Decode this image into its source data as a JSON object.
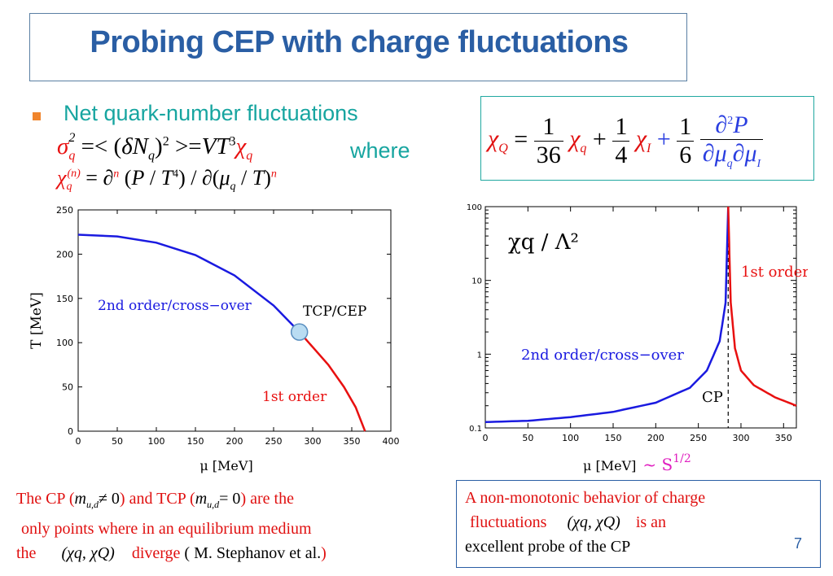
{
  "slide": {
    "title": "Probing CEP with charge fluctuations",
    "bullet": "Net quark-number fluctuations",
    "where": "where",
    "page_number": "7"
  },
  "colors": {
    "title": "#2a5ea4",
    "teal": "#17a5a0",
    "bullet_marker": "#f0852d",
    "red": "#e81010",
    "blue_curve": "#1a1ae0",
    "red_curve": "#e81010",
    "magenta": "#e020c0"
  },
  "formula_box": {
    "lhs": "χQ",
    "eq": "=",
    "c1_num": "1",
    "c1_den": "36",
    "t1": "χq",
    "plus": "+",
    "c2_num": "1",
    "c2_den": "4",
    "t2": "χI",
    "c3_num": "1",
    "c3_den": "6",
    "d_num": "∂²P",
    "d_den": "∂μq∂μI"
  },
  "left_chart": {
    "y_label": "T [MeV]",
    "x_label": "μ  [MeV]",
    "y_ticks": [
      "0",
      "50",
      "100",
      "150",
      "200",
      "250"
    ],
    "x_ticks": [
      "0",
      "50",
      "100",
      "150",
      "200",
      "250",
      "300",
      "350",
      "400"
    ],
    "label_crossover": "2nd order/cross−over",
    "label_tcp": "TCP/CEP",
    "label_first_order": "1st order"
  },
  "right_chart": {
    "title": "χq / Λ²",
    "y_ticks": [
      "100",
      "10",
      "1",
      "0.1"
    ],
    "x_ticks": [
      "0",
      "50",
      "100",
      "150",
      "200",
      "250",
      "300",
      "350"
    ],
    "x_label": "μ [MeV]",
    "x_label_suffix": "~ S",
    "x_label_sup": "1/2",
    "label_crossover": "2nd order/cross−over",
    "label_first_order": "1st order",
    "label_cp": "CP"
  },
  "chart_data": [
    {
      "type": "line",
      "ylabel": "T [MeV]",
      "xlabel": "μ  [MeV]",
      "xlim": [
        0,
        400
      ],
      "ylim": [
        0,
        250
      ],
      "series": [
        {
          "name": "2nd order/cross−over",
          "x": [
            0,
            50,
            100,
            150,
            200,
            250,
            283
          ],
          "y": [
            222,
            220,
            213,
            199,
            176,
            142,
            112
          ]
        },
        {
          "name": "1st order",
          "x": [
            283,
            300,
            320,
            340,
            355,
            367
          ],
          "y": [
            112,
            95,
            75,
            50,
            27,
            0
          ]
        }
      ],
      "points": [
        {
          "label": "TCP/CEP",
          "x": 283,
          "y": 112
        }
      ]
    },
    {
      "type": "line",
      "title": "χq / Λ²",
      "xlabel": "μ [MeV]",
      "xlim": [
        0,
        365
      ],
      "ylim": [
        0.1,
        100
      ],
      "yscale": "log",
      "series": [
        {
          "name": "2nd order/cross−over",
          "x": [
            0,
            50,
            100,
            150,
            200,
            240,
            260,
            275,
            282,
            285
          ],
          "y": [
            0.12,
            0.125,
            0.14,
            0.165,
            0.22,
            0.35,
            0.6,
            1.5,
            5,
            100
          ]
        },
        {
          "name": "1st order",
          "x": [
            285,
            288,
            293,
            300,
            315,
            340,
            365
          ],
          "y": [
            100,
            5,
            1.2,
            0.6,
            0.38,
            0.26,
            0.2
          ]
        }
      ],
      "vline": {
        "label": "CP",
        "x": 285
      }
    }
  ],
  "left_note": {
    "p1": "The CP (",
    "m1": "m",
    "m1_sub": "u,d",
    "neq": "≠ 0",
    "p2": ")  and TCP (",
    "m2": "m",
    "m2_sub": "u,d",
    "eq0": "= 0",
    "p3": ") are the",
    "line2": "only  points where  in an equilibrium medium",
    "line3a": "the",
    "chis": "(χq, χQ)",
    "line3b": "diverge",
    "line3c": "( M. Stephanov et al.",
    "line3d": ")"
  },
  "right_note": {
    "line1": "A non-monotonic behavior of  charge",
    "line2a": "fluctuations",
    "chis": "(χq, χQ)",
    "line2b": "is an",
    "line3": "excellent probe  of the CP"
  }
}
